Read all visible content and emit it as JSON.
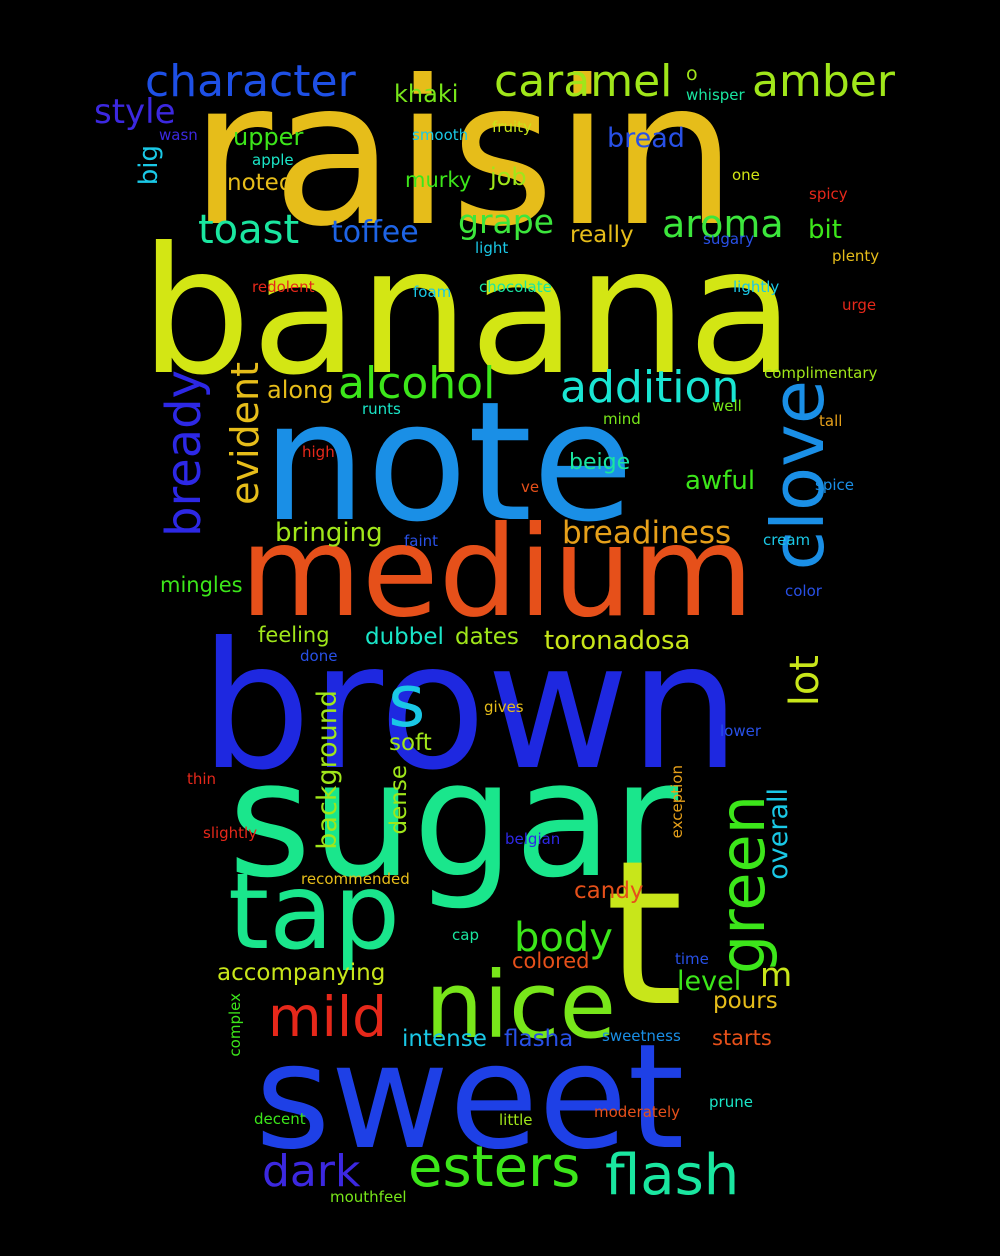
{
  "words": [
    {
      "text": "raisin",
      "color": "#e6bd1a",
      "orient": "h"
    },
    {
      "text": "banana",
      "color": "#d3e614",
      "orient": "h"
    },
    {
      "text": "note",
      "color": "#1a8fe6",
      "orient": "h"
    },
    {
      "text": "medium",
      "color": "#e6501a",
      "orient": "h"
    },
    {
      "text": "brown",
      "color": "#1e28e0",
      "orient": "h"
    },
    {
      "text": "sugar",
      "color": "#1ae68c",
      "orient": "h"
    },
    {
      "text": "sweet",
      "color": "#1e40e6",
      "orient": "h"
    },
    {
      "text": "t",
      "color": "#c8e61a",
      "orient": "h"
    },
    {
      "text": "tap",
      "color": "#1ae68c",
      "orient": "h"
    },
    {
      "text": "nice",
      "color": "#78e61a",
      "orient": "h"
    },
    {
      "text": "clove",
      "color": "#1a8fe6",
      "orient": "v"
    },
    {
      "text": "s",
      "color": "#1ac8e6",
      "orient": "h"
    },
    {
      "text": "green",
      "color": "#3ce61a",
      "orient": "v"
    },
    {
      "text": "character",
      "color": "#1e50e6",
      "orient": "h"
    },
    {
      "text": "caramel",
      "color": "#a0e61a",
      "orient": "h"
    },
    {
      "text": "amber",
      "color": "#a0e61a",
      "orient": "h"
    },
    {
      "text": "o",
      "color": "#a0e61a",
      "orient": "h"
    },
    {
      "text": "style",
      "color": "#3c28e0",
      "orient": "h"
    },
    {
      "text": "khaki",
      "color": "#78e61a",
      "orient": "h"
    },
    {
      "text": "whisper",
      "color": "#1ae6a0",
      "orient": "h"
    },
    {
      "text": "wasn",
      "color": "#3c28e0",
      "orient": "h"
    },
    {
      "text": "smooth",
      "color": "#1ac8e6",
      "orient": "h"
    },
    {
      "text": "fruity",
      "color": "#c8e61a",
      "orient": "h"
    },
    {
      "text": "bread",
      "color": "#2850e6",
      "orient": "h"
    },
    {
      "text": "upper",
      "color": "#3ce61a",
      "orient": "h"
    },
    {
      "text": "big",
      "color": "#1ac8e6",
      "orient": "v"
    },
    {
      "text": "apple",
      "color": "#1ae6c8",
      "orient": "h"
    },
    {
      "text": "one",
      "color": "#d3e614",
      "orient": "h"
    },
    {
      "text": "spicy",
      "color": "#e6281a",
      "orient": "h"
    },
    {
      "text": "noted",
      "color": "#e6bd1a",
      "orient": "h"
    },
    {
      "text": "murky",
      "color": "#3ce61a",
      "orient": "h"
    },
    {
      "text": "job",
      "color": "#a0e61a",
      "orient": "h"
    },
    {
      "text": "toast",
      "color": "#1ae6a0",
      "orient": "h"
    },
    {
      "text": "toffee",
      "color": "#1e64e6",
      "orient": "h"
    },
    {
      "text": "grape",
      "color": "#3ce63c",
      "orient": "h"
    },
    {
      "text": "aroma",
      "color": "#3ce63c",
      "orient": "h"
    },
    {
      "text": "bit",
      "color": "#3ce61a",
      "orient": "h"
    },
    {
      "text": "really",
      "color": "#e6bd1a",
      "orient": "h"
    },
    {
      "text": "sugary",
      "color": "#2850e6",
      "orient": "h"
    },
    {
      "text": "light",
      "color": "#1ac8e6",
      "orient": "h"
    },
    {
      "text": "plenty",
      "color": "#e6bd1a",
      "orient": "h"
    },
    {
      "text": "redolent",
      "color": "#e6281a",
      "orient": "h"
    },
    {
      "text": "foam",
      "color": "#1ac8e6",
      "orient": "h"
    },
    {
      "text": "chocolate",
      "color": "#1ae6a0",
      "orient": "h"
    },
    {
      "text": "lightly",
      "color": "#1ac8e6",
      "orient": "h"
    },
    {
      "text": "urge",
      "color": "#e6281a",
      "orient": "h"
    },
    {
      "text": "bready",
      "color": "#2d28e6",
      "orient": "v"
    },
    {
      "text": "evident",
      "color": "#e6bd1a",
      "orient": "v"
    },
    {
      "text": "alcohol",
      "color": "#3ce61a",
      "orient": "h"
    },
    {
      "text": "addition",
      "color": "#1ae6d3",
      "orient": "h"
    },
    {
      "text": "complimentary",
      "color": "#a0e61a",
      "orient": "h"
    },
    {
      "text": "along",
      "color": "#e6bd1a",
      "orient": "h"
    },
    {
      "text": "runts",
      "color": "#1ae6c8",
      "orient": "h"
    },
    {
      "text": "mind",
      "color": "#78e61a",
      "orient": "h"
    },
    {
      "text": "well",
      "color": "#78e61a",
      "orient": "h"
    },
    {
      "text": "tall",
      "color": "#e6a01a",
      "orient": "h"
    },
    {
      "text": "high",
      "color": "#e6281a",
      "orient": "h"
    },
    {
      "text": "beige",
      "color": "#1ae6a0",
      "orient": "h"
    },
    {
      "text": "ve",
      "color": "#e6501a",
      "orient": "h"
    },
    {
      "text": "awful",
      "color": "#3ce61a",
      "orient": "h"
    },
    {
      "text": "spice",
      "color": "#1a8fe6",
      "orient": "h"
    },
    {
      "text": "bringing",
      "color": "#a0e61a",
      "orient": "h"
    },
    {
      "text": "breadiness",
      "color": "#e6a01a",
      "orient": "h"
    },
    {
      "text": "faint",
      "color": "#2850e6",
      "orient": "h"
    },
    {
      "text": "cream",
      "color": "#1ac8e6",
      "orient": "h"
    },
    {
      "text": "mingles",
      "color": "#3ce61a",
      "orient": "h"
    },
    {
      "text": "color",
      "color": "#2850e6",
      "orient": "h"
    },
    {
      "text": "feeling",
      "color": "#a0e61a",
      "orient": "h"
    },
    {
      "text": "dubbel",
      "color": "#1ae6c8",
      "orient": "h"
    },
    {
      "text": "dates",
      "color": "#a0e61a",
      "orient": "h"
    },
    {
      "text": "toronadosa",
      "color": "#c8e61a",
      "orient": "h"
    },
    {
      "text": "lot",
      "color": "#c8e61a",
      "orient": "v"
    },
    {
      "text": "done",
      "color": "#2850e6",
      "orient": "h"
    },
    {
      "text": "background",
      "color": "#a0e61a",
      "orient": "v"
    },
    {
      "text": "gives",
      "color": "#e6bd1a",
      "orient": "h"
    },
    {
      "text": "soft",
      "color": "#a0e61a",
      "orient": "h"
    },
    {
      "text": "lower",
      "color": "#2850e6",
      "orient": "h"
    },
    {
      "text": "thin",
      "color": "#e6281a",
      "orient": "h"
    },
    {
      "text": "dense",
      "color": "#a0e61a",
      "orient": "v"
    },
    {
      "text": "exception",
      "color": "#e6a01a",
      "orient": "v"
    },
    {
      "text": "overall",
      "color": "#1ac8e6",
      "orient": "v"
    },
    {
      "text": "slightly",
      "color": "#e6281a",
      "orient": "h"
    },
    {
      "text": "belgian",
      "color": "#2d28e6",
      "orient": "h"
    },
    {
      "text": "recommended",
      "color": "#e6bd1a",
      "orient": "h"
    },
    {
      "text": "candy",
      "color": "#e6501a",
      "orient": "h"
    },
    {
      "text": "body",
      "color": "#3ce61a",
      "orient": "h"
    },
    {
      "text": "cap",
      "color": "#1ae6a0",
      "orient": "h"
    },
    {
      "text": "time",
      "color": "#2850e6",
      "orient": "h"
    },
    {
      "text": "accompanying",
      "color": "#c8e61a",
      "orient": "h"
    },
    {
      "text": "colored",
      "color": "#e6501a",
      "orient": "h"
    },
    {
      "text": "level",
      "color": "#3ce61a",
      "orient": "h"
    },
    {
      "text": "m",
      "color": "#c8e61a",
      "orient": "h"
    },
    {
      "text": "pours",
      "color": "#e6bd1a",
      "orient": "h"
    },
    {
      "text": "mild",
      "color": "#e6281a",
      "orient": "h"
    },
    {
      "text": "complex",
      "color": "#3ce61a",
      "orient": "v"
    },
    {
      "text": "intense",
      "color": "#1ac8e6",
      "orient": "h"
    },
    {
      "text": "flasha",
      "color": "#2850e6",
      "orient": "h"
    },
    {
      "text": "sweetness",
      "color": "#1a8fe6",
      "orient": "h"
    },
    {
      "text": "starts",
      "color": "#e6501a",
      "orient": "h"
    },
    {
      "text": "prune",
      "color": "#1ae6c8",
      "orient": "h"
    },
    {
      "text": "decent",
      "color": "#3ce61a",
      "orient": "h"
    },
    {
      "text": "little",
      "color": "#a0e61a",
      "orient": "h"
    },
    {
      "text": "moderately",
      "color": "#e6501a",
      "orient": "h"
    },
    {
      "text": "dark",
      "color": "#3c28e0",
      "orient": "h"
    },
    {
      "text": "esters",
      "color": "#3ce61a",
      "orient": "h"
    },
    {
      "text": "flash",
      "color": "#1ae6a0",
      "orient": "h"
    },
    {
      "text": "mouthfeel",
      "color": "#78e61a",
      "orient": "h"
    }
  ]
}
